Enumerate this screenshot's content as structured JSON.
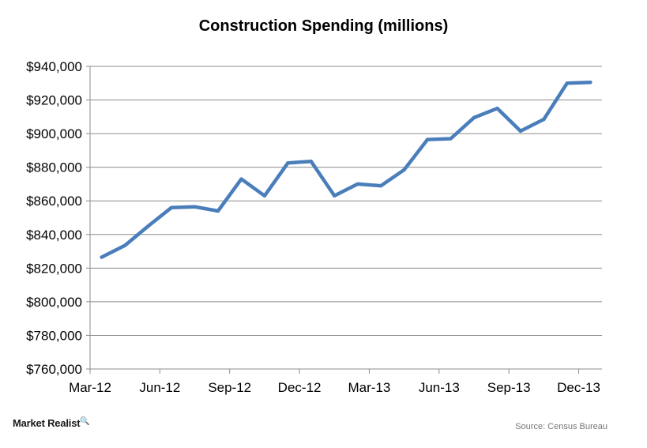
{
  "chart_data": {
    "type": "line",
    "title": "Construction Spending (millions)",
    "xlabel": "",
    "ylabel": "",
    "x_tick_labels": [
      "Mar-12",
      "Jun-12",
      "Sep-12",
      "Dec-12",
      "Mar-13",
      "Jun-13",
      "Sep-13",
      "Dec-13"
    ],
    "x": [
      "Mar-12",
      "Apr-12",
      "May-12",
      "Jun-12",
      "Jul-12",
      "Aug-12",
      "Sep-12",
      "Oct-12",
      "Nov-12",
      "Dec-12",
      "Jan-13",
      "Feb-13",
      "Mar-13",
      "Apr-13",
      "May-13",
      "Jun-13",
      "Jul-13",
      "Aug-13",
      "Sep-13",
      "Oct-13",
      "Nov-13",
      "Dec-13"
    ],
    "series": [
      {
        "values": [
          826500,
          833500,
          845000,
          856000,
          856500,
          854000,
          873000,
          863000,
          882500,
          883500,
          863000,
          870000,
          869000,
          878500,
          896500,
          897000,
          909500,
          915000,
          901500,
          908500,
          930000,
          930500
        ],
        "color": "#4a7ebb"
      }
    ],
    "ylim": [
      760000,
      940000
    ],
    "y_tick_values": [
      760000,
      780000,
      800000,
      820000,
      840000,
      860000,
      880000,
      900000,
      920000,
      940000
    ],
    "y_tick_labels": [
      "$760,000",
      "$780,000",
      "$800,000",
      "$820,000",
      "$840,000",
      "$860,000",
      "$880,000",
      "$900,000",
      "$920,000",
      "$940,000"
    ],
    "grid": true,
    "legend": "none"
  },
  "brand": {
    "name": "Market Realist",
    "mark": "🔍"
  },
  "source": "Source: Census Bureau"
}
